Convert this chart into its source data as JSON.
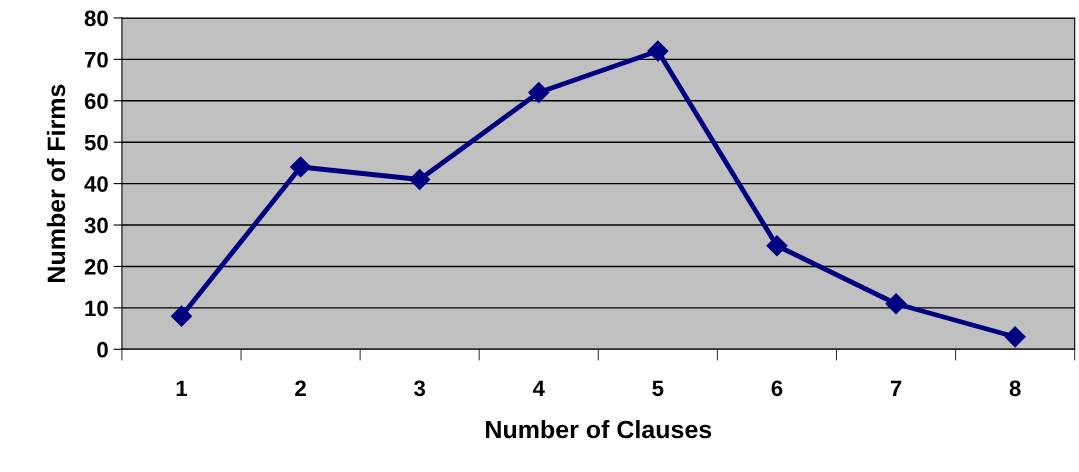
{
  "chart_data": {
    "type": "line",
    "xlabel": "Number of Clauses",
    "ylabel": "Number of Firms",
    "categories": [
      "1",
      "2",
      "3",
      "4",
      "5",
      "6",
      "7",
      "8"
    ],
    "series": [
      {
        "color": "#000080",
        "values": [
          8,
          44,
          41,
          62,
          72,
          25,
          11,
          3
        ]
      }
    ],
    "ylim": [
      0,
      80
    ],
    "yticks": [
      0,
      10,
      20,
      30,
      40,
      50,
      60,
      70,
      80
    ],
    "grid": "y",
    "marker": "diamond",
    "line_style": "solid",
    "legend": false
  }
}
